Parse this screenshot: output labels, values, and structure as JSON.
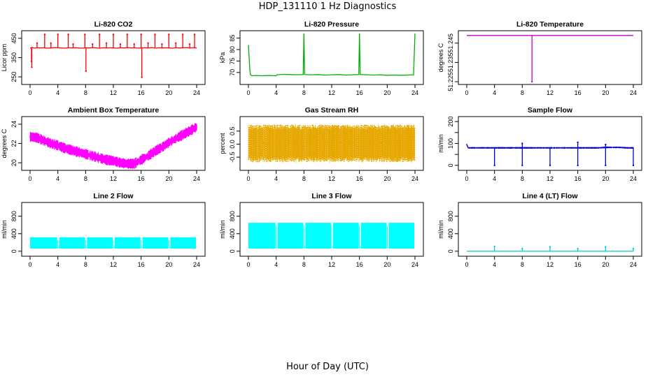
{
  "page": {
    "title": "HDP_131110  1 Hz Diagnostics",
    "xlabel": "Hour of Day (UTC)"
  },
  "chart_data": [
    {
      "type": "line",
      "title": "Li-820 CO2",
      "ylabel": "Licor ppm",
      "color": "#ff0000",
      "xlim": [
        0,
        24
      ],
      "ylim": [
        225,
        475
      ],
      "xticks": [
        0,
        4,
        8,
        12,
        16,
        20,
        24
      ],
      "xticklabels": [
        "0",
        "4",
        "8",
        "12",
        "16",
        "20",
        "24"
      ],
      "yticks": [
        250,
        350,
        450
      ],
      "yticklabels": [
        "250",
        "350",
        "450"
      ],
      "series": [
        {
          "x": [
            0,
            0.3,
            0.6,
            1,
            1.4,
            2,
            2.4,
            3,
            3.6,
            4,
            4.4,
            5,
            5.6,
            6,
            6.6,
            7,
            7.6,
            8,
            8.6,
            9,
            9.6,
            10,
            10.6,
            11,
            11.6,
            12,
            12.6,
            13,
            13.6,
            14,
            14.6,
            15,
            15.6,
            16,
            16.6,
            17,
            17.6,
            18,
            18.6,
            19,
            19.6,
            20,
            20.6,
            21,
            21.6,
            22,
            22.6,
            23,
            23.6,
            24
          ],
          "y": [
            400,
            402,
            399,
            401,
            400,
            401,
            399,
            400,
            402,
            401,
            400,
            399,
            401,
            400,
            401,
            400,
            399,
            401,
            400,
            402,
            400,
            399,
            401,
            400,
            401,
            400,
            399,
            401,
            400,
            402,
            400,
            401,
            399,
            400,
            401,
            400,
            402,
            399,
            401,
            400,
            401,
            400,
            399,
            401,
            400,
            401,
            402,
            400,
            401,
            400
          ]
        }
      ],
      "spikes": [
        {
          "x": 0.2,
          "y": 330
        },
        {
          "x": 0.25,
          "y": 300
        },
        {
          "x": 2.1,
          "y": 470
        },
        {
          "x": 4.0,
          "y": 470
        },
        {
          "x": 5.5,
          "y": 470
        },
        {
          "x": 7.9,
          "y": 470
        },
        {
          "x": 8.05,
          "y": 280
        },
        {
          "x": 10.0,
          "y": 470
        },
        {
          "x": 12.0,
          "y": 470
        },
        {
          "x": 14.0,
          "y": 470
        },
        {
          "x": 16.0,
          "y": 470
        },
        {
          "x": 16.1,
          "y": 248
        },
        {
          "x": 18.0,
          "y": 470
        },
        {
          "x": 20.0,
          "y": 470
        },
        {
          "x": 22.0,
          "y": 470
        },
        {
          "x": 23.7,
          "y": 470
        },
        {
          "x": 1.0,
          "y": 425
        },
        {
          "x": 3.0,
          "y": 425
        },
        {
          "x": 6.2,
          "y": 420
        },
        {
          "x": 9.0,
          "y": 420
        },
        {
          "x": 11.0,
          "y": 425
        },
        {
          "x": 13.0,
          "y": 420
        },
        {
          "x": 15.0,
          "y": 420
        },
        {
          "x": 17.0,
          "y": 425
        },
        {
          "x": 19.0,
          "y": 420
        },
        {
          "x": 21.0,
          "y": 425
        },
        {
          "x": 23.0,
          "y": 420
        }
      ]
    },
    {
      "type": "line",
      "title": "Li-820 Pressure",
      "ylabel": "kPa",
      "color": "#00b000",
      "xlim": [
        0,
        24
      ],
      "ylim": [
        66,
        87
      ],
      "xticks": [
        0,
        4,
        8,
        12,
        16,
        20,
        24
      ],
      "xticklabels": [
        "0",
        "4",
        "8",
        "12",
        "16",
        "20",
        "24"
      ],
      "yticks": [
        70,
        75,
        80,
        85
      ],
      "yticklabels": [
        "70",
        "75",
        "80",
        "85"
      ],
      "series": [
        {
          "x": [
            0,
            0.2,
            0.3,
            0.5,
            1,
            2,
            3,
            4,
            4.1,
            5,
            6,
            7,
            7.9,
            8,
            8.1,
            9,
            10,
            11,
            12,
            13,
            14,
            15,
            15.9,
            16,
            16.1,
            17,
            18,
            19,
            20,
            21,
            22,
            23,
            23.8,
            24
          ],
          "y": [
            82,
            71,
            69,
            68.6,
            68.7,
            68.6,
            68.7,
            68.6,
            69,
            69.2,
            69.1,
            69.0,
            69.1,
            87,
            69.1,
            69.0,
            69.1,
            68.9,
            69.0,
            69.1,
            68.9,
            69.0,
            69.1,
            87,
            69.1,
            69.0,
            68.9,
            69.0,
            68.8,
            68.9,
            68.8,
            68.9,
            69.0,
            87
          ]
        }
      ],
      "spikes": []
    },
    {
      "type": "line",
      "title": "Li-820 Temperature",
      "ylabel": "degrees C",
      "color": "#cc00cc",
      "xlim": [
        0,
        24
      ],
      "ylim": [
        51.225,
        51.25
      ],
      "xticks": [
        0,
        4,
        8,
        12,
        16,
        20,
        24
      ],
      "xticklabels": [
        "0",
        "4",
        "8",
        "12",
        "16",
        "20",
        "24"
      ],
      "yticks": [
        51.225,
        51.235,
        51.245
      ],
      "yticklabels": [
        "51.225",
        "51.235",
        "51.245"
      ],
      "series": [
        {
          "x": [
            0,
            24
          ],
          "y": [
            51.249,
            51.249
          ]
        }
      ],
      "spikes": [
        {
          "x": 9.4,
          "y": 51.225
        }
      ]
    },
    {
      "type": "line",
      "title": "Ambient Box Temperature",
      "ylabel": "degrees C",
      "color": "#ff00ff",
      "xlim": [
        0,
        24
      ],
      "ylim": [
        19.5,
        24.5
      ],
      "xticks": [
        0,
        4,
        8,
        12,
        16,
        20,
        24
      ],
      "xticklabels": [
        "0",
        "4",
        "8",
        "12",
        "16",
        "20",
        "24"
      ],
      "yticks": [
        20,
        22,
        24
      ],
      "yticklabels": [
        "20",
        "22",
        "24"
      ],
      "series": [
        {
          "x": [
            0,
            1,
            2,
            3,
            4,
            5,
            6,
            7,
            8,
            9,
            10,
            11,
            12,
            13,
            14,
            15,
            16,
            17,
            18,
            19,
            20,
            21,
            22,
            23,
            24
          ],
          "y": [
            22.7,
            22.6,
            22.3,
            22.0,
            21.8,
            21.5,
            21.3,
            21.1,
            20.9,
            20.7,
            20.5,
            20.3,
            20.2,
            20.0,
            19.9,
            19.9,
            20.3,
            20.7,
            21.2,
            21.6,
            22.1,
            22.5,
            22.9,
            23.3,
            23.7
          ]
        }
      ],
      "band": 1.1,
      "spikes": []
    },
    {
      "type": "line",
      "title": "Gas Stream RH",
      "ylabel": "percent",
      "color": "#e6a800",
      "xlim": [
        0,
        24
      ],
      "ylim": [
        -0.9,
        0.95
      ],
      "xticks": [
        0,
        4,
        8,
        12,
        16,
        20,
        24
      ],
      "xticklabels": [
        "0",
        "4",
        "8",
        "12",
        "16",
        "20",
        "24"
      ],
      "yticks": [
        -0.5,
        0,
        0.5
      ],
      "yticklabels": [
        "-0.5",
        "0.0",
        "0.5"
      ],
      "series": [
        {
          "x": [
            0,
            24
          ],
          "y": [
            0.05,
            0.05
          ]
        }
      ],
      "band_low": -0.7,
      "band_high": 0.75,
      "spikes": []
    },
    {
      "type": "line",
      "title": "Sample Flow",
      "ylabel": "ml/min",
      "color": "#0000dd",
      "xlim": [
        0,
        24
      ],
      "ylim": [
        -10,
        210
      ],
      "xticks": [
        0,
        4,
        8,
        12,
        16,
        20,
        24
      ],
      "xticklabels": [
        "0",
        "4",
        "8",
        "12",
        "16",
        "20",
        "24"
      ],
      "yticks": [
        0,
        50,
        100,
        150,
        200
      ],
      "yticklabels": [
        "0",
        "",
        "100",
        "",
        "200"
      ],
      "series": [
        {
          "x": [
            0,
            0.2,
            1,
            2,
            3,
            4,
            5,
            6,
            7,
            8,
            9,
            10,
            11,
            12,
            13,
            14,
            15,
            16,
            17,
            18,
            19,
            20,
            21,
            22,
            23,
            24
          ],
          "y": [
            95,
            80,
            80,
            80,
            80,
            80,
            80,
            80,
            80,
            80,
            80,
            80,
            80,
            80,
            80,
            80,
            80,
            80,
            80,
            80,
            80,
            82,
            82,
            82,
            80,
            80
          ]
        }
      ],
      "band": 8,
      "spikes": [
        {
          "x": 4.0,
          "y": 0
        },
        {
          "x": 8.0,
          "y": 0
        },
        {
          "x": 12.0,
          "y": 0
        },
        {
          "x": 16.0,
          "y": 0
        },
        {
          "x": 20.0,
          "y": 0
        },
        {
          "x": 24.0,
          "y": 0
        },
        {
          "x": 8.0,
          "y": 100
        },
        {
          "x": 16.0,
          "y": 105
        },
        {
          "x": 20.0,
          "y": 95
        }
      ]
    },
    {
      "type": "area",
      "title": "Line 2 Flow",
      "ylabel": "ml/min",
      "color": "#00ffff",
      "xlim": [
        0,
        24
      ],
      "ylim": [
        -50,
        1050
      ],
      "xticks": [
        0,
        4,
        8,
        12,
        16,
        20,
        24
      ],
      "xticklabels": [
        "0",
        "4",
        "8",
        "12",
        "16",
        "20",
        "24"
      ],
      "yticks": [
        0,
        400,
        800
      ],
      "yticklabels": [
        "0",
        "400",
        "800"
      ],
      "series": [
        {
          "x": [
            0,
            4,
            8,
            12,
            16,
            20,
            24
          ],
          "y": [
            300,
            300,
            300,
            300,
            300,
            300,
            300
          ]
        }
      ],
      "band_low": 60,
      "band_high": 320,
      "gaps": [
        4,
        8,
        12,
        16,
        20
      ],
      "spikes": []
    },
    {
      "type": "area",
      "title": "Line 3 Flow",
      "ylabel": "ml/min",
      "color": "#00ffff",
      "xlim": [
        0,
        24
      ],
      "ylim": [
        -50,
        1050
      ],
      "xticks": [
        0,
        4,
        8,
        12,
        16,
        20,
        24
      ],
      "xticklabels": [
        "0",
        "4",
        "8",
        "12",
        "16",
        "20",
        "24"
      ],
      "yticks": [
        0,
        400,
        800
      ],
      "yticklabels": [
        "0",
        "400",
        "800"
      ],
      "series": [
        {
          "x": [
            0,
            4,
            8,
            12,
            16,
            20,
            24
          ],
          "y": [
            650,
            650,
            650,
            650,
            650,
            650,
            650
          ]
        }
      ],
      "band_low": 60,
      "band_high": 650,
      "gaps": [
        4,
        8,
        12,
        16,
        20
      ],
      "spikes": []
    },
    {
      "type": "line",
      "title": "Line 4 (LT) Flow",
      "ylabel": "ml/min",
      "color": "#00cccc",
      "xlim": [
        0,
        24
      ],
      "ylim": [
        -50,
        1050
      ],
      "xticks": [
        0,
        4,
        8,
        12,
        16,
        20,
        24
      ],
      "xticklabels": [
        "0",
        "4",
        "8",
        "12",
        "16",
        "20",
        "24"
      ],
      "yticks": [
        0,
        400,
        800
      ],
      "yticklabels": [
        "0",
        "400",
        "800"
      ],
      "series": [
        {
          "x": [
            0,
            24
          ],
          "y": [
            0,
            0
          ]
        }
      ],
      "spikes": [
        {
          "x": 4.0,
          "y": 110
        },
        {
          "x": 8.0,
          "y": 60
        },
        {
          "x": 12.0,
          "y": 100
        },
        {
          "x": 16.0,
          "y": 60
        },
        {
          "x": 20.0,
          "y": 100
        },
        {
          "x": 24.0,
          "y": 60
        }
      ]
    }
  ]
}
